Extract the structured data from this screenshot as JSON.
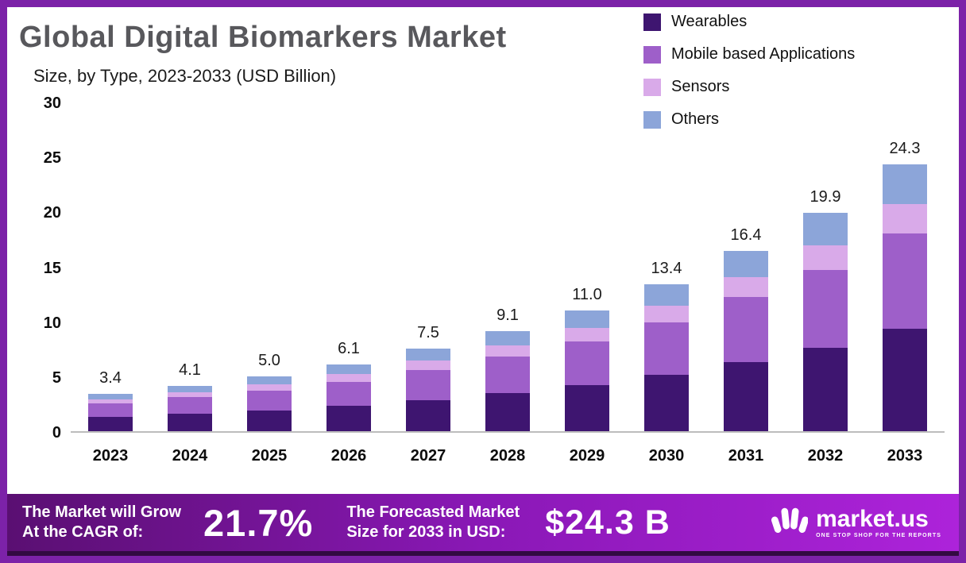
{
  "frame": {
    "border_color": "#7c22a8"
  },
  "header": {
    "title": "Global Digital Biomarkers Market",
    "subtitle": "Size, by Type, 2023-2033 (USD Billion)"
  },
  "chart_data": {
    "type": "bar",
    "stacked": true,
    "title": "Global Digital Biomarkers Market",
    "subtitle": "Size, by Type, 2023-2033 (USD Billion)",
    "unit": "USD Billion",
    "categories": [
      "2023",
      "2024",
      "2025",
      "2026",
      "2027",
      "2028",
      "2029",
      "2030",
      "2031",
      "2032",
      "2033"
    ],
    "series": [
      {
        "name": "Wearables",
        "color": "#3e1570",
        "values": [
          1.3,
          1.6,
          1.9,
          2.3,
          2.85,
          3.5,
          4.2,
          5.1,
          6.3,
          7.6,
          9.3
        ]
      },
      {
        "name": "Mobile based Applications",
        "color": "#9e5fc9",
        "values": [
          1.2,
          1.5,
          1.8,
          2.2,
          2.7,
          3.3,
          4.0,
          4.8,
          5.9,
          7.1,
          8.7
        ]
      },
      {
        "name": "Sensors",
        "color": "#d9aae9",
        "values": [
          0.4,
          0.45,
          0.55,
          0.7,
          0.85,
          1.0,
          1.2,
          1.5,
          1.8,
          2.2,
          2.7
        ]
      },
      {
        "name": "Others",
        "color": "#8ca5d9",
        "values": [
          0.5,
          0.55,
          0.75,
          0.9,
          1.1,
          1.3,
          1.6,
          2.0,
          2.4,
          3.0,
          3.6
        ]
      }
    ],
    "totals": [
      3.4,
      4.1,
      5.0,
      6.1,
      7.5,
      9.1,
      11.0,
      13.4,
      16.4,
      19.9,
      24.3
    ],
    "total_labels": [
      "3.4",
      "4.1",
      "5.0",
      "6.1",
      "7.5",
      "9.1",
      "11.0",
      "13.4",
      "16.4",
      "19.9",
      "24.3"
    ],
    "xlabel": "",
    "ylabel": "",
    "ylim": [
      0,
      30
    ],
    "yticks": [
      0,
      5,
      10,
      15,
      20,
      25,
      30
    ],
    "grid": false,
    "legend_position": "top-right"
  },
  "footer": {
    "cagr_label_line1": "The Market will Grow",
    "cagr_label_line2": "At the CAGR of:",
    "cagr_value": "21.7%",
    "forecast_label_line1": "The Forecasted Market",
    "forecast_label_line2": "Size for 2033 in USD:",
    "forecast_value": "$24.3 B",
    "brand": "market.us",
    "brand_tagline": "ONE STOP SHOP FOR THE REPORTS"
  }
}
